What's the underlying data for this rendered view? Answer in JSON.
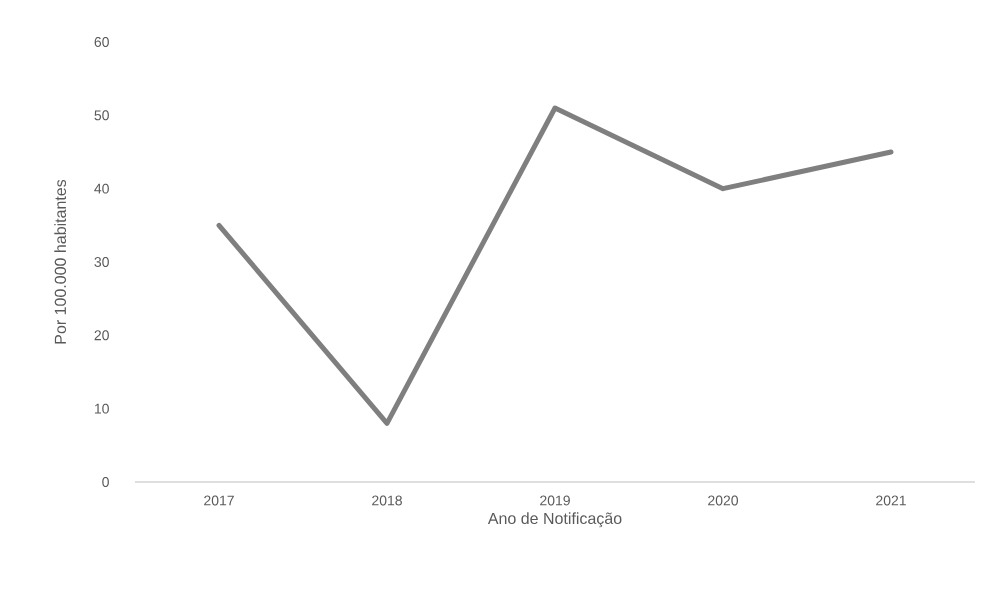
{
  "chart_data": {
    "type": "line",
    "xlabel": "Ano de Notificação",
    "ylabel": "Por 100.000 habitantes",
    "categories": [
      "2017",
      "2018",
      "2019",
      "2020",
      "2021"
    ],
    "values": [
      35,
      8,
      51,
      40,
      45
    ],
    "color": "#7f7f7f",
    "ylim": [
      0,
      60
    ],
    "yticks": [
      0,
      10,
      20,
      30,
      40,
      50,
      60
    ]
  }
}
